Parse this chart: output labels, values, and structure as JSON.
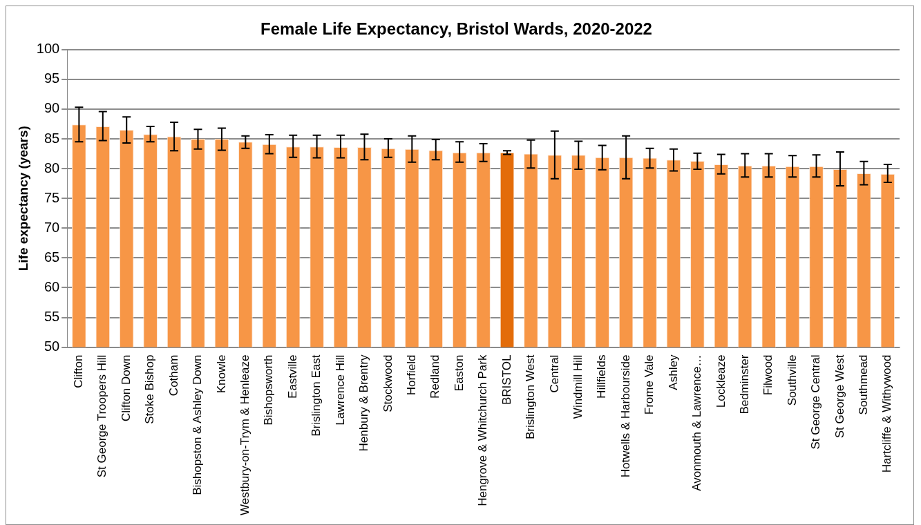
{
  "chart_data": {
    "type": "bar",
    "title": "Female Life Expectancy, Bristol Wards, 2020-2022",
    "ylabel": "Life expectancy (years)",
    "categories": [
      "Clifton",
      "St George Troopers Hill",
      "Clifton Down",
      "Stoke Bishop",
      "Cotham",
      "Bishopston & Ashley Down",
      "Knowle",
      "Westbury-on-Trym & Henleaze",
      "Bishopsworth",
      "Eastville",
      "Brislington East",
      "Lawrence Hill",
      "Henbury & Brentry",
      "Stockwood",
      "Horfield",
      "Redland",
      "Easton",
      "Hengrove & Whitchurch Park",
      "BRISTOL",
      "Brislington West",
      "Central",
      "Windmill Hill",
      "Hillfields",
      "Hotwells & Harbourside",
      "Frome Vale",
      "Ashley",
      "Avonmouth & Lawrence…",
      "Lockleaze",
      "Bedminster",
      "Filwood",
      "Southville",
      "St George Central",
      "St George West",
      "Southmead",
      "Hartcliffe & Withywood"
    ],
    "values": [
      87.4,
      87.1,
      86.5,
      85.8,
      85.4,
      85.0,
      85.0,
      84.5,
      84.1,
      83.7,
      83.7,
      83.6,
      83.6,
      83.4,
      83.3,
      83.1,
      82.7,
      82.7,
      82.7,
      82.5,
      82.3,
      82.3,
      81.9,
      81.9,
      81.8,
      81.5,
      81.3,
      80.7,
      80.5,
      80.5,
      80.4,
      80.4,
      79.9,
      79.2,
      79.1
    ],
    "errors": [
      [
        84.5,
        90.3
      ],
      [
        84.7,
        89.6
      ],
      [
        84.3,
        88.7
      ],
      [
        84.5,
        87.1
      ],
      [
        83.0,
        87.8
      ],
      [
        83.3,
        86.6
      ],
      [
        83.1,
        86.8
      ],
      [
        83.4,
        85.5
      ],
      [
        82.5,
        85.7
      ],
      [
        81.9,
        85.6
      ],
      [
        81.8,
        85.6
      ],
      [
        81.8,
        85.6
      ],
      [
        81.5,
        85.8
      ],
      [
        81.9,
        85.0
      ],
      [
        81.1,
        85.5
      ],
      [
        81.5,
        84.9
      ],
      [
        81.1,
        84.5
      ],
      [
        81.2,
        84.2
      ],
      [
        82.4,
        83.0
      ],
      [
        80.1,
        84.8
      ],
      [
        78.3,
        86.3
      ],
      [
        79.9,
        84.6
      ],
      [
        79.8,
        83.9
      ],
      [
        78.3,
        85.5
      ],
      [
        80.1,
        83.4
      ],
      [
        79.6,
        83.3
      ],
      [
        79.9,
        82.6
      ],
      [
        79.1,
        82.4
      ],
      [
        78.6,
        82.5
      ],
      [
        78.6,
        82.5
      ],
      [
        78.6,
        82.2
      ],
      [
        78.6,
        82.3
      ],
      [
        77.1,
        82.8
      ],
      [
        77.3,
        81.2
      ],
      [
        77.7,
        80.7
      ]
    ],
    "colors": [
      "#f79646",
      "#f79646",
      "#f79646",
      "#f79646",
      "#f79646",
      "#f79646",
      "#f79646",
      "#f79646",
      "#f79646",
      "#f79646",
      "#f79646",
      "#f79646",
      "#f79646",
      "#f79646",
      "#f79646",
      "#f79646",
      "#f79646",
      "#f79646",
      "#e36c0a",
      "#f79646",
      "#f79646",
      "#f79646",
      "#f79646",
      "#f79646",
      "#f79646",
      "#f79646",
      "#f79646",
      "#f79646",
      "#f79646",
      "#f79646",
      "#f79646",
      "#f79646",
      "#f79646",
      "#f79646",
      "#f79646"
    ],
    "ylim": [
      50,
      100
    ],
    "yticks": [
      50,
      55,
      60,
      65,
      70,
      75,
      80,
      85,
      90,
      95,
      100
    ],
    "grid": "y",
    "legend": false
  }
}
